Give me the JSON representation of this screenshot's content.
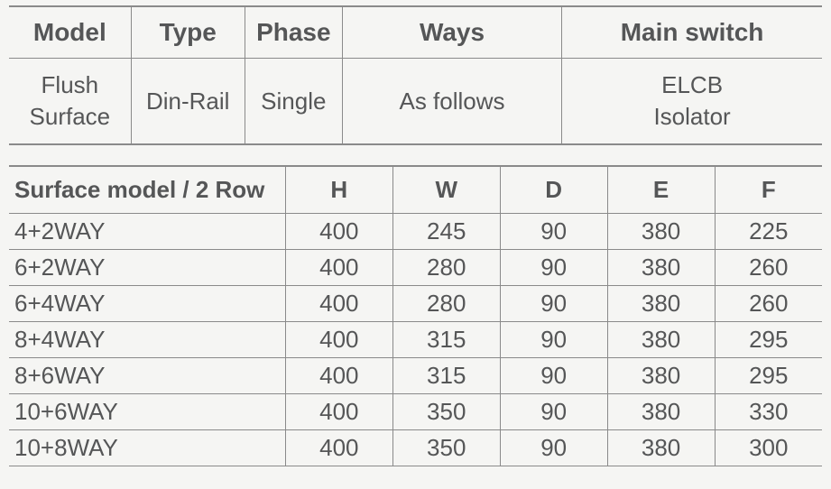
{
  "background_color": "#f5f5f3",
  "text_color": "#555657",
  "border_color": "#8a8a8a",
  "table1": {
    "headers": [
      "Model",
      "Type",
      "Phase",
      "Ways",
      "Main switch"
    ],
    "row": [
      "Flush\nSurface",
      "Din-Rail",
      "Single",
      "As follows",
      "ELCB\nIsolator"
    ],
    "col_widths_pct": [
      15,
      14,
      12,
      27,
      32
    ]
  },
  "table2": {
    "title_col": "Surface model / 2 Row",
    "dim_headers": [
      "H",
      "W",
      "D",
      "E",
      "F"
    ],
    "rows": [
      {
        "label": "4+2WAY",
        "vals": [
          "400",
          "245",
          "90",
          "380",
          "225"
        ]
      },
      {
        "label": "6+2WAY",
        "vals": [
          "400",
          "280",
          "90",
          "380",
          "260"
        ]
      },
      {
        "label": "6+4WAY",
        "vals": [
          "400",
          "280",
          "90",
          "380",
          "260"
        ]
      },
      {
        "label": "8+4WAY",
        "vals": [
          "400",
          "315",
          "90",
          "380",
          "295"
        ]
      },
      {
        "label": "8+6WAY",
        "vals": [
          "400",
          "315",
          "90",
          "380",
          "295"
        ]
      },
      {
        "label": "10+6WAY",
        "vals": [
          "400",
          "350",
          "90",
          "380",
          "330"
        ]
      },
      {
        "label": "10+8WAY",
        "vals": [
          "400",
          "350",
          "90",
          "380",
          "300"
        ]
      }
    ],
    "label_col_width_pct": 34,
    "val_col_width_pct": 13.2
  }
}
